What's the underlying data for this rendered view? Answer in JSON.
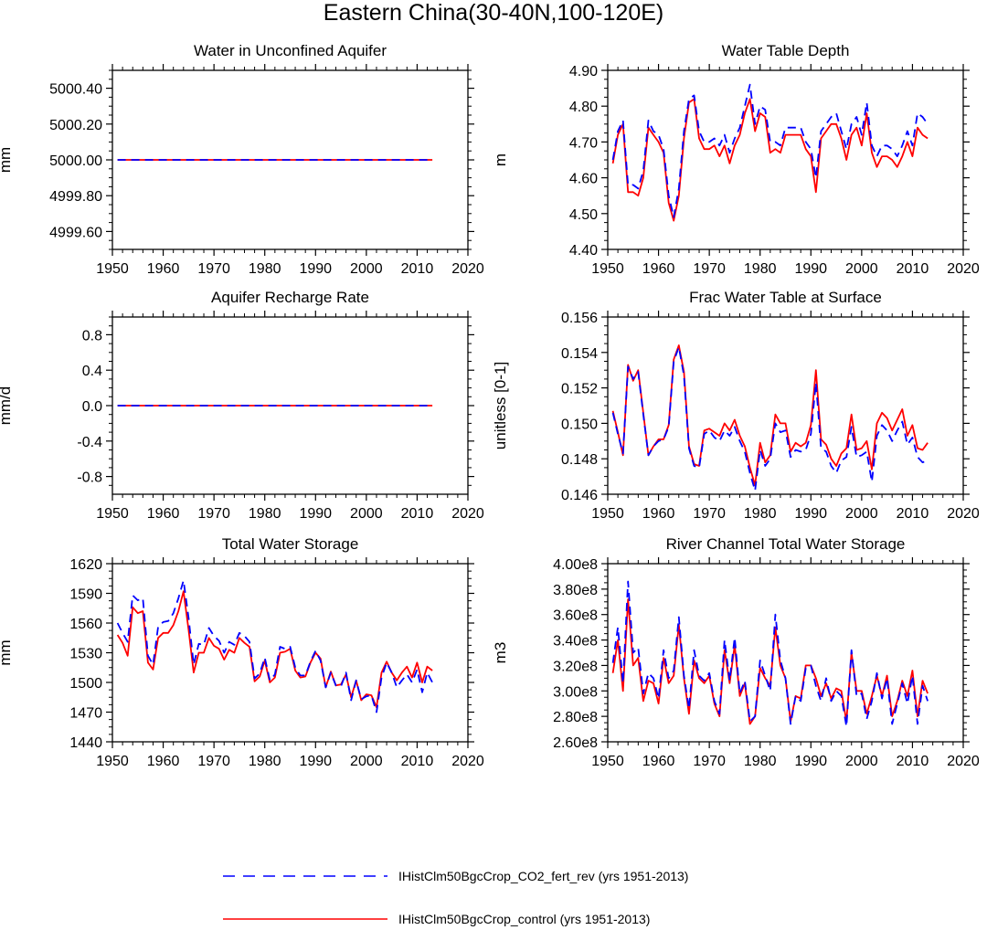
{
  "figure": {
    "title": "Eastern China(30-40N,100-120E)",
    "legend": [
      {
        "label": "IHistClm50BgcCrop_CO2_fert_rev (yrs 1951-2013)",
        "color": "#0000ff",
        "dash": true
      },
      {
        "label": "IHistClm50BgcCrop_control (yrs 1951-2013)",
        "color": "#ff0000",
        "dash": false
      }
    ]
  },
  "chart_data": [
    {
      "type": "line",
      "title": "Water in Unconfined Aquifer",
      "ylabel": "mm",
      "xlim": [
        1950,
        2020
      ],
      "xticks": [
        1950,
        1960,
        1970,
        1980,
        1990,
        2000,
        2010,
        2020
      ],
      "ylim": [
        4999.5,
        5000.5
      ],
      "yticks": [
        4999.6,
        4999.8,
        5000.0,
        5000.2,
        5000.4
      ],
      "ytick_labels": [
        "4999.60",
        "4999.80",
        "5000.00",
        "5000.20",
        "5000.40"
      ],
      "x": [
        1951,
        2013
      ],
      "series": [
        {
          "color": "#ff0000",
          "dash": false,
          "values": [
            5000.0,
            5000.0
          ]
        },
        {
          "color": "#0000ff",
          "dash": true,
          "values": [
            5000.0,
            5000.0
          ]
        }
      ]
    },
    {
      "type": "line",
      "title": "Water Table Depth",
      "ylabel": "m",
      "xlim": [
        1950,
        2020
      ],
      "xticks": [
        1950,
        1960,
        1970,
        1980,
        1990,
        2000,
        2010,
        2020
      ],
      "ylim": [
        4.4,
        4.9
      ],
      "yticks": [
        4.4,
        4.5,
        4.6,
        4.7,
        4.8,
        4.9
      ],
      "ytick_labels": [
        "4.40",
        "4.50",
        "4.60",
        "4.70",
        "4.80",
        "4.90"
      ],
      "x_start": 1951,
      "series": [
        {
          "color": "#ff0000",
          "dash": false,
          "values": [
            4.64,
            4.72,
            4.75,
            4.56,
            4.56,
            4.55,
            4.6,
            4.74,
            4.72,
            4.7,
            4.67,
            4.53,
            4.48,
            4.55,
            4.71,
            4.81,
            4.82,
            4.71,
            4.68,
            4.68,
            4.69,
            4.66,
            4.69,
            4.64,
            4.69,
            4.72,
            4.78,
            4.82,
            4.73,
            4.78,
            4.77,
            4.67,
            4.68,
            4.67,
            4.72,
            4.72,
            4.72,
            4.72,
            4.68,
            4.66,
            4.56,
            4.71,
            4.73,
            4.75,
            4.75,
            4.71,
            4.65,
            4.72,
            4.74,
            4.69,
            4.78,
            4.67,
            4.63,
            4.66,
            4.66,
            4.65,
            4.63,
            4.66,
            4.7,
            4.66,
            4.74,
            4.72,
            4.71
          ]
        },
        {
          "color": "#0000ff",
          "dash": true,
          "values": [
            4.65,
            4.73,
            4.76,
            4.58,
            4.58,
            4.57,
            4.62,
            4.76,
            4.73,
            4.72,
            4.68,
            4.55,
            4.49,
            4.57,
            4.73,
            4.82,
            4.83,
            4.73,
            4.7,
            4.7,
            4.71,
            4.69,
            4.72,
            4.67,
            4.71,
            4.74,
            4.8,
            4.86,
            4.75,
            4.8,
            4.79,
            4.7,
            4.7,
            4.69,
            4.74,
            4.74,
            4.74,
            4.74,
            4.7,
            4.68,
            4.6,
            4.73,
            4.75,
            4.77,
            4.78,
            4.73,
            4.68,
            4.75,
            4.77,
            4.72,
            4.81,
            4.69,
            4.66,
            4.69,
            4.69,
            4.68,
            4.66,
            4.69,
            4.73,
            4.69,
            4.78,
            4.77,
            4.75
          ]
        }
      ]
    },
    {
      "type": "line",
      "title": "Aquifer Recharge Rate",
      "ylabel": "mm/d",
      "xlim": [
        1950,
        2020
      ],
      "xticks": [
        1950,
        1960,
        1970,
        1980,
        1990,
        2000,
        2010,
        2020
      ],
      "ylim": [
        -1.0,
        1.0
      ],
      "yticks": [
        -0.8,
        -0.4,
        0.0,
        0.4,
        0.8
      ],
      "ytick_labels": [
        "-0.8",
        "-0.4",
        "0.0",
        "0.4",
        "0.8"
      ],
      "x": [
        1951,
        2013
      ],
      "series": [
        {
          "color": "#ff0000",
          "dash": false,
          "values": [
            0.0,
            0.0
          ]
        },
        {
          "color": "#0000ff",
          "dash": true,
          "values": [
            0.0,
            0.0
          ]
        }
      ]
    },
    {
      "type": "line",
      "title": "Frac Water Table at Surface",
      "ylabel": "unitless [0-1]",
      "xlim": [
        1950,
        2020
      ],
      "xticks": [
        1950,
        1960,
        1970,
        1980,
        1990,
        2000,
        2010,
        2020
      ],
      "ylim": [
        0.146,
        0.156
      ],
      "yticks": [
        0.146,
        0.148,
        0.15,
        0.152,
        0.154,
        0.156
      ],
      "ytick_labels": [
        "0.146",
        "0.148",
        "0.150",
        "0.152",
        "0.154",
        "0.156"
      ],
      "x_start": 1951,
      "series": [
        {
          "color": "#ff0000",
          "dash": false,
          "values": [
            0.1507,
            0.1495,
            0.1482,
            0.1533,
            0.1524,
            0.153,
            0.1506,
            0.1482,
            0.1487,
            0.1491,
            0.1491,
            0.1499,
            0.1536,
            0.1544,
            0.1529,
            0.1487,
            0.1477,
            0.1476,
            0.1496,
            0.1497,
            0.1495,
            0.1493,
            0.15,
            0.1496,
            0.1502,
            0.1493,
            0.1487,
            0.1475,
            0.1465,
            0.1489,
            0.1478,
            0.1482,
            0.1505,
            0.15,
            0.15,
            0.1484,
            0.1489,
            0.1487,
            0.1489,
            0.1499,
            0.153,
            0.1491,
            0.1488,
            0.148,
            0.1476,
            0.1483,
            0.1486,
            0.1505,
            0.1485,
            0.1486,
            0.149,
            0.1474,
            0.15,
            0.1506,
            0.1503,
            0.1496,
            0.1502,
            0.1508,
            0.1493,
            0.1499,
            0.1486,
            0.1485,
            0.1489
          ]
        },
        {
          "color": "#0000ff",
          "dash": true,
          "values": [
            0.1506,
            0.1494,
            0.1483,
            0.1532,
            0.1525,
            0.1529,
            0.1505,
            0.1482,
            0.1487,
            0.149,
            0.1491,
            0.1498,
            0.1535,
            0.1543,
            0.1527,
            0.1486,
            0.1476,
            0.1475,
            0.1494,
            0.1496,
            0.1492,
            0.149,
            0.1496,
            0.1493,
            0.1498,
            0.149,
            0.1484,
            0.1472,
            0.1462,
            0.1485,
            0.1476,
            0.148,
            0.15,
            0.1495,
            0.1496,
            0.1481,
            0.1485,
            0.1484,
            0.1485,
            0.1494,
            0.1523,
            0.1486,
            0.1484,
            0.1476,
            0.1472,
            0.1479,
            0.1481,
            0.1498,
            0.1481,
            0.1482,
            0.1484,
            0.1467,
            0.1493,
            0.1499,
            0.1496,
            0.149,
            0.1496,
            0.1501,
            0.1488,
            0.1492,
            0.1481,
            0.1478,
            0.1479
          ]
        }
      ]
    },
    {
      "type": "line",
      "title": "Total Water Storage",
      "ylabel": "mm",
      "xlim": [
        1950,
        2020
      ],
      "xticks": [
        1950,
        1960,
        1970,
        1980,
        1990,
        2000,
        2010,
        2020
      ],
      "ylim": [
        1440,
        1620
      ],
      "yticks": [
        1440,
        1470,
        1500,
        1530,
        1560,
        1590,
        1620
      ],
      "ytick_labels": [
        "1440",
        "1470",
        "1500",
        "1530",
        "1560",
        "1590",
        "1620"
      ],
      "x_start": 1951,
      "series": [
        {
          "color": "#ff0000",
          "dash": false,
          "values": [
            1548,
            1540,
            1527,
            1576,
            1570,
            1572,
            1520,
            1513,
            1545,
            1550,
            1550,
            1558,
            1572,
            1592,
            1553,
            1510,
            1530,
            1530,
            1545,
            1537,
            1534,
            1523,
            1533,
            1530,
            1545,
            1540,
            1536,
            1501,
            1506,
            1522,
            1500,
            1505,
            1530,
            1531,
            1534,
            1512,
            1505,
            1506,
            1520,
            1530,
            1524,
            1495,
            1511,
            1497,
            1498,
            1508,
            1485,
            1502,
            1482,
            1488,
            1487,
            1475,
            1510,
            1521,
            1510,
            1502,
            1510,
            1516,
            1505,
            1520,
            1500,
            1516,
            1512
          ]
        },
        {
          "color": "#0000ff",
          "dash": true,
          "values": [
            1560,
            1550,
            1541,
            1588,
            1583,
            1585,
            1527,
            1518,
            1556,
            1561,
            1562,
            1570,
            1585,
            1603,
            1565,
            1518,
            1539,
            1538,
            1555,
            1547,
            1542,
            1530,
            1541,
            1538,
            1550,
            1547,
            1541,
            1504,
            1509,
            1525,
            1502,
            1508,
            1536,
            1534,
            1536,
            1515,
            1507,
            1507,
            1521,
            1532,
            1522,
            1495,
            1510,
            1497,
            1496,
            1510,
            1482,
            1502,
            1483,
            1486,
            1487,
            1470,
            1505,
            1520,
            1510,
            1495,
            1502,
            1508,
            1500,
            1513,
            1490,
            1510,
            1500
          ]
        }
      ]
    },
    {
      "type": "line",
      "title": "River Channel Total Water Storage",
      "ylabel": "m3",
      "xlim": [
        1950,
        2020
      ],
      "xticks": [
        1950,
        1960,
        1970,
        1980,
        1990,
        2000,
        2010,
        2020
      ],
      "ylim": [
        260000000,
        400000000
      ],
      "yticks": [
        260000000,
        280000000,
        300000000,
        320000000,
        340000000,
        360000000,
        380000000,
        400000000
      ],
      "ytick_labels": [
        "2.60e8",
        "2.80e8",
        "3.00e8",
        "3.20e8",
        "3.40e8",
        "3.60e8",
        "3.80e8",
        "4.00e8"
      ],
      "x_start": 1951,
      "series": [
        {
          "color": "#ff0000",
          "dash": false,
          "values": [
            314000000,
            340000000,
            300000000,
            372000000,
            320000000,
            326000000,
            292000000,
            308000000,
            306000000,
            290000000,
            326000000,
            306000000,
            312000000,
            352000000,
            310000000,
            282000000,
            324000000,
            310000000,
            306000000,
            312000000,
            290000000,
            280000000,
            332000000,
            306000000,
            336000000,
            296000000,
            306000000,
            274000000,
            280000000,
            318000000,
            310000000,
            304000000,
            350000000,
            320000000,
            310000000,
            276000000,
            296000000,
            294000000,
            320000000,
            320000000,
            310000000,
            296000000,
            306000000,
            294000000,
            302000000,
            300000000,
            276000000,
            330000000,
            300000000,
            300000000,
            282000000,
            296000000,
            312000000,
            296000000,
            312000000,
            280000000,
            292000000,
            308000000,
            296000000,
            316000000,
            280000000,
            308000000,
            298000000
          ]
        },
        {
          "color": "#0000ff",
          "dash": true,
          "values": [
            322000000,
            350000000,
            306000000,
            386000000,
            330000000,
            334000000,
            298000000,
            314000000,
            310000000,
            294000000,
            332000000,
            310000000,
            316000000,
            358000000,
            312000000,
            286000000,
            332000000,
            312000000,
            308000000,
            314000000,
            292000000,
            282000000,
            340000000,
            308000000,
            342000000,
            298000000,
            308000000,
            276000000,
            280000000,
            324000000,
            312000000,
            300000000,
            360000000,
            324000000,
            310000000,
            274000000,
            296000000,
            292000000,
            318000000,
            320000000,
            304000000,
            292000000,
            310000000,
            292000000,
            300000000,
            296000000,
            272000000,
            332000000,
            296000000,
            298000000,
            278000000,
            292000000,
            314000000,
            294000000,
            310000000,
            274000000,
            290000000,
            306000000,
            290000000,
            312000000,
            274000000,
            304000000,
            292000000
          ]
        }
      ]
    }
  ]
}
